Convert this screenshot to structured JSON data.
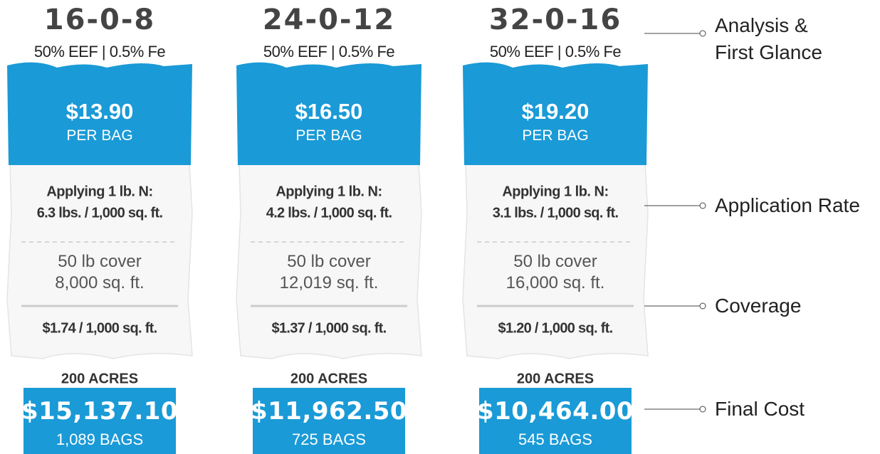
{
  "products": [
    {
      "analysis": "16-0-8",
      "subtitle": "50% EEF | 0.5% Fe",
      "price": "$13.90",
      "price_unit": "PER BAG",
      "rate_heading": "Applying 1 lb. N:",
      "rate": "6.3 lbs. / 1,000 sq. ft.",
      "coverage_line1": "50 lb cover",
      "coverage_line2": "8,000 sq. ft.",
      "cost_per_area": "$1.74 / 1,000 sq. ft.",
      "acres": "200 ACRES",
      "total": "$15,137.10",
      "bags": "1,089 BAGS"
    },
    {
      "analysis": "24-0-12",
      "subtitle": "50% EEF | 0.5% Fe",
      "price": "$16.50",
      "price_unit": "PER BAG",
      "rate_heading": "Applying 1 lb. N:",
      "rate": "4.2 lbs. / 1,000 sq. ft.",
      "coverage_line1": "50 lb cover",
      "coverage_line2": "12,019 sq. ft.",
      "cost_per_area": "$1.37 / 1,000 sq. ft.",
      "acres": "200 ACRES",
      "total": "$11,962.50",
      "bags": "725 BAGS"
    },
    {
      "analysis": "32-0-16",
      "subtitle": "50% EEF | 0.5% Fe",
      "price": "$19.20",
      "price_unit": "PER BAG",
      "rate_heading": "Applying 1 lb. N:",
      "rate": "3.1 lbs. / 1,000 sq. ft.",
      "coverage_line1": "50 lb cover",
      "coverage_line2": "16,000 sq. ft.",
      "cost_per_area": "$1.20 / 1,000 sq. ft.",
      "acres": "200 ACRES",
      "total": "$10,464.00",
      "bags": "545 BAGS"
    }
  ],
  "callouts": [
    {
      "lines": [
        "Analysis &",
        "First Glance"
      ]
    },
    {
      "lines": [
        "Application Rate"
      ]
    },
    {
      "lines": [
        "Coverage"
      ]
    },
    {
      "lines": [
        "Final Cost"
      ]
    }
  ]
}
